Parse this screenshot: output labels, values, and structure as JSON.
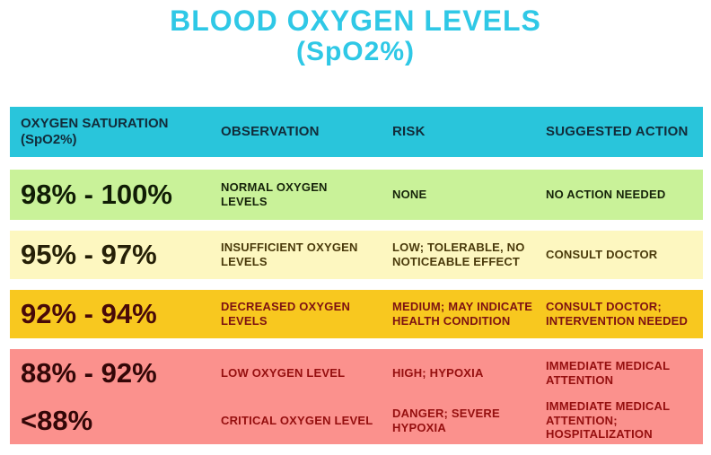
{
  "title": {
    "line1": "BLOOD OXYGEN LEVELS",
    "line2": "(SpO2%)"
  },
  "table": {
    "headers": [
      "OXYGEN SATURATION\n(SpO2%)",
      "OBSERVATION",
      "RISK",
      "SUGGESTED ACTION"
    ],
    "rows": [
      {
        "range": "98% - 100%",
        "observation": "NORMAL OXYGEN\nLEVELS",
        "risk": "NONE",
        "action": "NO ACTION NEEDED"
      },
      {
        "range": "95% - 97%",
        "observation": "INSUFFICIENT OXYGEN\nLEVELS",
        "risk": "LOW; TOLERABLE, NO\nNOTICEABLE EFFECT",
        "action": "CONSULT DOCTOR"
      },
      {
        "range": "92% - 94%",
        "observation": "DECREASED OXYGEN\nLEVELS",
        "risk": "MEDIUM; MAY INDICATE\nHEALTH CONDITION",
        "action": "CONSULT DOCTOR;\nINTERVENTION NEEDED"
      },
      {
        "range": "88% - 92%",
        "observation": "LOW OXYGEN LEVEL",
        "risk": "HIGH; HYPOXIA",
        "action": "IMMEDIATE MEDICAL\nATTENTION"
      },
      {
        "range": "<88%",
        "observation": "CRITICAL OXYGEN LEVEL",
        "risk": "DANGER; SEVERE\nHYPOXIA",
        "action": "IMMEDIATE MEDICAL\nATTENTION;\nHOSPITALIZATION"
      }
    ]
  },
  "colors": {
    "title_accent": "#2fc8e6",
    "header_bg": "#29c5db",
    "header_text": "#122c3a",
    "row_green_bg": "#c9f299",
    "row_cream_bg": "#fdf7c0",
    "row_gold_bg": "#f8c81f",
    "row_red_bg": "#fb918d",
    "red_text": "#950f0f"
  },
  "chart_data": {
    "type": "table",
    "title": "BLOOD OXYGEN LEVELS (SpO2%)",
    "columns": [
      "OXYGEN SATURATION (SpO2%)",
      "OBSERVATION",
      "RISK",
      "SUGGESTED ACTION"
    ],
    "rows": [
      [
        "98% - 100%",
        "NORMAL OXYGEN LEVELS",
        "NONE",
        "NO ACTION NEEDED"
      ],
      [
        "95% - 97%",
        "INSUFFICIENT OXYGEN LEVELS",
        "LOW; TOLERABLE, NO NOTICEABLE EFFECT",
        "CONSULT DOCTOR"
      ],
      [
        "92% - 94%",
        "DECREASED OXYGEN LEVELS",
        "MEDIUM; MAY INDICATE HEALTH CONDITION",
        "CONSULT DOCTOR; INTERVENTION NEEDED"
      ],
      [
        "88% - 92%",
        "LOW OXYGEN LEVEL",
        "HIGH; HYPOXIA",
        "IMMEDIATE MEDICAL ATTENTION"
      ],
      [
        "<88%",
        "CRITICAL OXYGEN LEVEL",
        "DANGER; SEVERE HYPOXIA",
        "IMMEDIATE MEDICAL ATTENTION; HOSPITALIZATION"
      ]
    ],
    "row_colors": [
      "#c9f299",
      "#fdf7c0",
      "#f8c81f",
      "#fb918d",
      "#fb918d"
    ],
    "header_color": "#29c5db",
    "legend_position": "none",
    "grid": false
  }
}
